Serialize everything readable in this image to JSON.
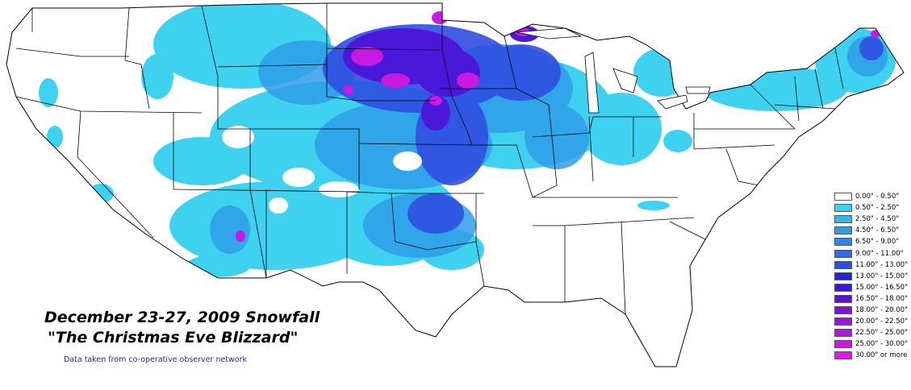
{
  "map": {
    "title_line1": "December 23-27, 2009 Snowfall",
    "title_line2": "\"The Christmas Eve Blizzard\"",
    "source_note": "Data taken from co-operative observer network"
  },
  "colors": {
    "background": "#ffffff",
    "border": "#000000",
    "light_snow": "#3fd2f0",
    "moderate_snow": "#2f86e8",
    "heavy_snow": "#3a23d8",
    "extreme_snow": "#c020e0",
    "max_snow": "#e018e8"
  },
  "legend": {
    "items": [
      {
        "label": "0.00\" - 0.50\"",
        "color": "#ffffff"
      },
      {
        "label": "0.50\" - 2.50\"",
        "color": "#3fd2f0"
      },
      {
        "label": "2.50\" - 4.50\"",
        "color": "#33b6ec"
      },
      {
        "label": "4.50\" - 6.50\"",
        "color": "#2f9ee9"
      },
      {
        "label": "6.50\" - 9.00\"",
        "color": "#2f86e8"
      },
      {
        "label": "9.00\" - 11.00\"",
        "color": "#2f6de6"
      },
      {
        "label": "11.00\" - 13.00\"",
        "color": "#2a4fe2"
      },
      {
        "label": "13.00\" - 15.00\"",
        "color": "#2424dc"
      },
      {
        "label": "15.00\" - 16.50\"",
        "color": "#3a18d8"
      },
      {
        "label": "16.50\" - 18.00\"",
        "color": "#5a12d6"
      },
      {
        "label": "18.00\" - 20.00\"",
        "color": "#7a14d6"
      },
      {
        "label": "20.00\" - 22.50\"",
        "color": "#9a16d8"
      },
      {
        "label": "22.50\" - 25.00\"",
        "color": "#b218d8"
      },
      {
        "label": "25.00\" - 30.00\"",
        "color": "#c81ae0"
      },
      {
        "label": "30.00\" or more",
        "color": "#e018e8"
      }
    ]
  }
}
